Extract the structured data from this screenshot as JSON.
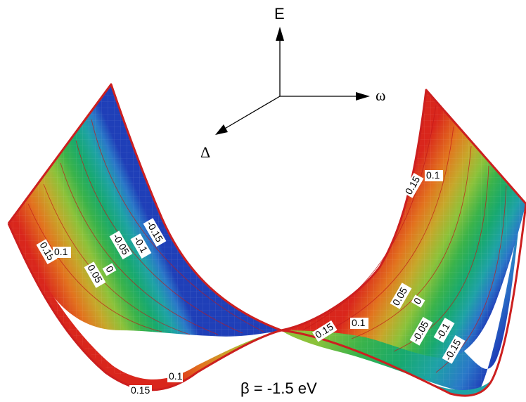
{
  "axes": {
    "e_label": "E",
    "omega_label": "ω",
    "delta_label": "Δ"
  },
  "caption": "β = -1.5 eV",
  "contour_labels": {
    "left": [
      "0.15",
      "0.1",
      "0.05",
      "0",
      "-0.05",
      "-0.1",
      "-0.15"
    ],
    "right_top": [
      "0.15",
      "0.1"
    ],
    "right_mid": [
      "0.05",
      "0",
      "-0.05",
      "-0.1",
      "-0.15"
    ],
    "center": [
      "0.15",
      "0.1"
    ],
    "bottom": [
      "0.1",
      "0.15"
    ]
  },
  "colors": {
    "edge": "#cc1f1f",
    "gradient": [
      "#d9261c",
      "#e2731e",
      "#c7a72a",
      "#8cc23a",
      "#3ab34a",
      "#18a96e",
      "#1ea2a6",
      "#2a78c8",
      "#1f3fb8"
    ]
  }
}
